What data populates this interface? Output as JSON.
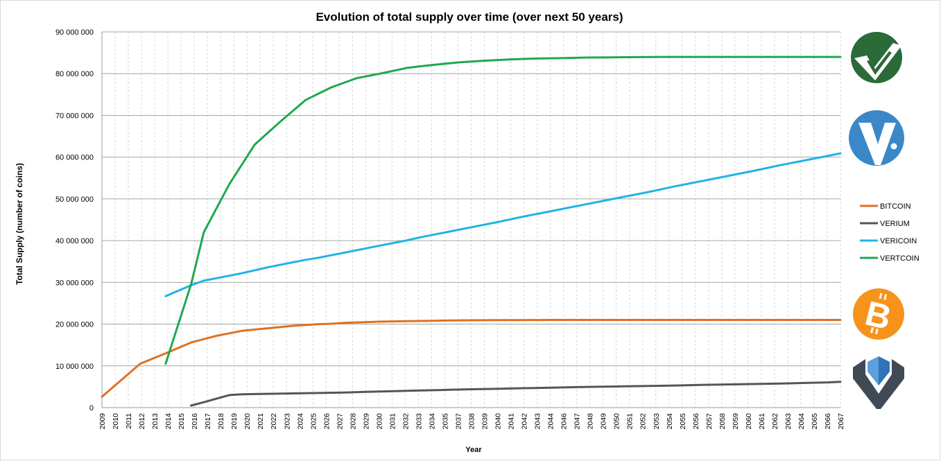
{
  "chart_data": {
    "type": "line",
    "title": "Evolution  of total supply over time (over next 50 years)",
    "xlabel": "Year",
    "ylabel": "Total Supply (number of coins)",
    "ylim": [
      0,
      90000000
    ],
    "yticks": [
      "0",
      "10 000 000",
      "20 000 000",
      "30 000 000",
      "40 000 000",
      "50 000 000",
      "60 000 000",
      "70 000 000",
      "80 000 000",
      "90 000 000"
    ],
    "grid": true,
    "legend_position": "right",
    "categories": [
      "2009",
      "2010",
      "2011",
      "2012",
      "2013",
      "2014",
      "2015",
      "2016",
      "2017",
      "2018",
      "2019",
      "2020",
      "2021",
      "2022",
      "2023",
      "2024",
      "2025",
      "2026",
      "2027",
      "2028",
      "2029",
      "2030",
      "2031",
      "2032",
      "2033",
      "2034",
      "2035",
      "2036",
      "2037",
      "2038",
      "2039",
      "2040",
      "2041",
      "2042",
      "2043",
      "2044",
      "2045",
      "2046",
      "2047",
      "2048",
      "2049",
      "2050",
      "2051",
      "2052",
      "2053",
      "2054",
      "2055",
      "2056",
      "2057",
      "2058",
      "2059",
      "2060",
      "2061",
      "2062",
      "2063",
      "2064",
      "2065",
      "2066",
      "2067"
    ],
    "tick_labels": [
      "2009",
      "2010",
      "2011",
      "2012",
      "2013",
      "2014",
      "2015",
      "2016",
      "2017",
      "2018",
      "2019",
      "2020",
      "2021",
      "2022",
      "2023",
      "2024",
      "2025",
      "2026",
      "2027",
      "2028",
      "2029",
      "2030",
      "2031",
      "2032",
      "2033",
      "2034",
      "2035",
      "2037",
      "2038",
      "2039",
      "2040",
      "2041",
      "2042",
      "2043",
      "2044",
      "2046",
      "2047",
      "2048",
      "2049",
      "2050",
      "2051",
      "2052",
      "2053",
      "2054",
      "2055",
      "2056",
      "2057",
      "2058",
      "2059",
      "2060",
      "2061",
      "2062",
      "2063",
      "2064",
      "2065",
      "2066",
      "2067"
    ],
    "series": [
      {
        "name": "BITCOIN",
        "color": "#e07020",
        "points": [
          [
            2009,
            2600000
          ],
          [
            2012,
            10500000
          ],
          [
            2014,
            13000000
          ],
          [
            2016,
            15600000
          ],
          [
            2017,
            16400000
          ],
          [
            2018,
            17200000
          ],
          [
            2019,
            17800000
          ],
          [
            2020,
            18400000
          ],
          [
            2021,
            18700000
          ],
          [
            2022,
            19000000
          ],
          [
            2023,
            19300000
          ],
          [
            2024,
            19600000
          ],
          [
            2025,
            19800000
          ],
          [
            2026,
            20000000
          ],
          [
            2027,
            20100000
          ],
          [
            2028,
            20300000
          ],
          [
            2029,
            20400000
          ],
          [
            2030,
            20500000
          ],
          [
            2031,
            20600000
          ],
          [
            2032,
            20650000
          ],
          [
            2033,
            20700000
          ],
          [
            2034,
            20750000
          ],
          [
            2035,
            20800000
          ],
          [
            2036,
            20850000
          ],
          [
            2037,
            20900000
          ],
          [
            2038,
            20920000
          ],
          [
            2039,
            20940000
          ],
          [
            2040,
            20960000
          ],
          [
            2041,
            20970000
          ],
          [
            2042,
            20980000
          ],
          [
            2043,
            20990000
          ],
          [
            2045,
            21000000
          ],
          [
            2067,
            21000000
          ]
        ]
      },
      {
        "name": "VERIUM",
        "color": "#555555",
        "points": [
          [
            2016,
            500000
          ],
          [
            2017,
            1300000
          ],
          [
            2019,
            3000000
          ],
          [
            2020,
            3200000
          ],
          [
            2022,
            3300000
          ],
          [
            2024,
            3400000
          ],
          [
            2026,
            3500000
          ],
          [
            2028,
            3600000
          ],
          [
            2030,
            3800000
          ],
          [
            2032,
            3950000
          ],
          [
            2034,
            4100000
          ],
          [
            2036,
            4250000
          ],
          [
            2038,
            4400000
          ],
          [
            2040,
            4500000
          ],
          [
            2042,
            4650000
          ],
          [
            2044,
            4750000
          ],
          [
            2046,
            4900000
          ],
          [
            2048,
            5000000
          ],
          [
            2050,
            5100000
          ],
          [
            2052,
            5200000
          ],
          [
            2054,
            5300000
          ],
          [
            2056,
            5450000
          ],
          [
            2058,
            5550000
          ],
          [
            2060,
            5650000
          ],
          [
            2062,
            5750000
          ],
          [
            2064,
            5900000
          ],
          [
            2066,
            6050000
          ],
          [
            2067,
            6200000
          ]
        ]
      },
      {
        "name": "VERICOIN",
        "color": "#1fb3e8",
        "points": [
          [
            2014,
            26700000
          ],
          [
            2016,
            29300000
          ],
          [
            2017,
            30400000
          ],
          [
            2018,
            31000000
          ],
          [
            2019,
            31600000
          ],
          [
            2020,
            32200000
          ],
          [
            2021,
            32900000
          ],
          [
            2022,
            33600000
          ],
          [
            2023,
            34200000
          ],
          [
            2024,
            34800000
          ],
          [
            2025,
            35400000
          ],
          [
            2026,
            35900000
          ],
          [
            2027,
            36500000
          ],
          [
            2028,
            37100000
          ],
          [
            2029,
            37700000
          ],
          [
            2030,
            38300000
          ],
          [
            2031,
            38900000
          ],
          [
            2032,
            39500000
          ],
          [
            2033,
            40100000
          ],
          [
            2034,
            40800000
          ],
          [
            2035,
            41400000
          ],
          [
            2036,
            42000000
          ],
          [
            2037,
            42600000
          ],
          [
            2038,
            43200000
          ],
          [
            2040,
            44400000
          ],
          [
            2042,
            45700000
          ],
          [
            2044,
            46900000
          ],
          [
            2046,
            48100000
          ],
          [
            2048,
            49300000
          ],
          [
            2050,
            50500000
          ],
          [
            2052,
            51700000
          ],
          [
            2054,
            53000000
          ],
          [
            2056,
            54200000
          ],
          [
            2058,
            55400000
          ],
          [
            2060,
            56600000
          ],
          [
            2062,
            57900000
          ],
          [
            2064,
            59100000
          ],
          [
            2066,
            60300000
          ],
          [
            2067,
            60900000
          ]
        ]
      },
      {
        "name": "VERTCOIN",
        "color": "#1fa84f",
        "points": [
          [
            2014,
            10500000
          ],
          [
            2016,
            29500000
          ],
          [
            2017,
            42000000
          ],
          [
            2019,
            53500000
          ],
          [
            2021,
            63000000
          ],
          [
            2023,
            68500000
          ],
          [
            2025,
            73700000
          ],
          [
            2027,
            76700000
          ],
          [
            2029,
            78900000
          ],
          [
            2031,
            80100000
          ],
          [
            2033,
            81400000
          ],
          [
            2035,
            82100000
          ],
          [
            2037,
            82700000
          ],
          [
            2039,
            83100000
          ],
          [
            2041,
            83400000
          ],
          [
            2043,
            83600000
          ],
          [
            2045,
            83700000
          ],
          [
            2047,
            83850000
          ],
          [
            2049,
            83900000
          ],
          [
            2051,
            83950000
          ],
          [
            2053,
            84000000
          ],
          [
            2067,
            84000000
          ]
        ]
      }
    ],
    "logos": [
      {
        "name": "vertcoin-logo",
        "bg": "#2a6b38"
      },
      {
        "name": "vericoin-logo",
        "bg": "#3b88c8"
      },
      {
        "name": "bitcoin-logo",
        "bg": "#f7931a"
      },
      {
        "name": "verium-logo",
        "bg": "#3f4a55"
      }
    ]
  }
}
